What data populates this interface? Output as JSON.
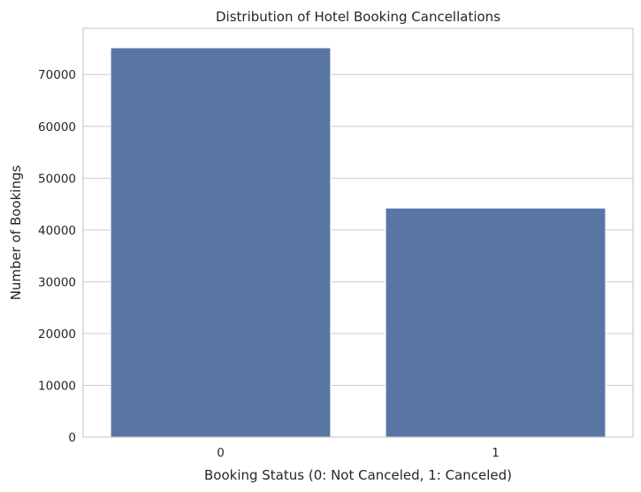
{
  "chart_data": {
    "type": "bar",
    "title": "Distribution of Hotel Booking Cancellations",
    "xlabel": "Booking Status (0: Not Canceled, 1: Canceled)",
    "ylabel": "Number of Bookings",
    "categories": [
      "0",
      "1"
    ],
    "values": [
      75166,
      44224
    ],
    "ylim": [
      0,
      78925
    ],
    "yticks": [
      0,
      10000,
      20000,
      30000,
      40000,
      50000,
      60000,
      70000
    ],
    "grid": true,
    "bar_color": "#5875a4"
  }
}
